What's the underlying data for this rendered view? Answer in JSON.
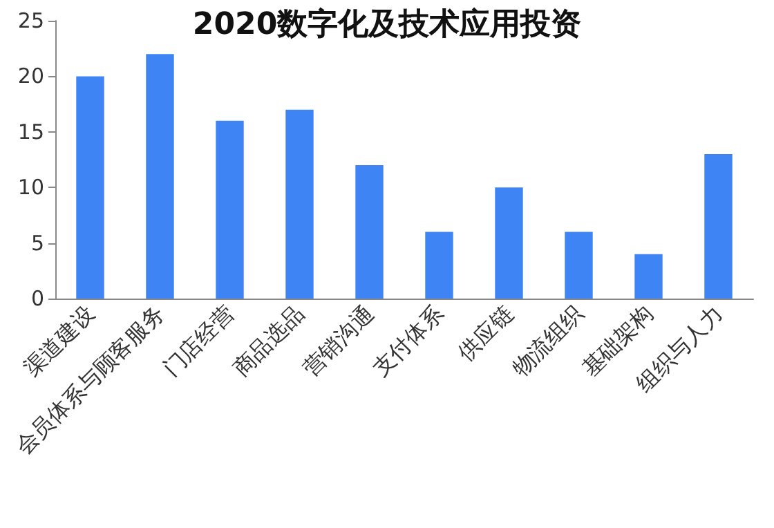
{
  "chart_data": {
    "type": "bar",
    "title": "2020数字化及技术应用投资",
    "categories": [
      "渠道建设",
      "会员体系与顾客服务",
      "门店经营",
      "商品选品",
      "营销沟通",
      "支付体系",
      "供应链",
      "物流组织",
      "基础架构",
      "组织与人力"
    ],
    "values": [
      20,
      22,
      16,
      17,
      12,
      6,
      10,
      6,
      4,
      13
    ],
    "color": "#3f84f4",
    "ylim": [
      0,
      25
    ],
    "yticks": [
      0,
      5,
      10,
      15,
      20,
      25
    ],
    "grid": false
  }
}
